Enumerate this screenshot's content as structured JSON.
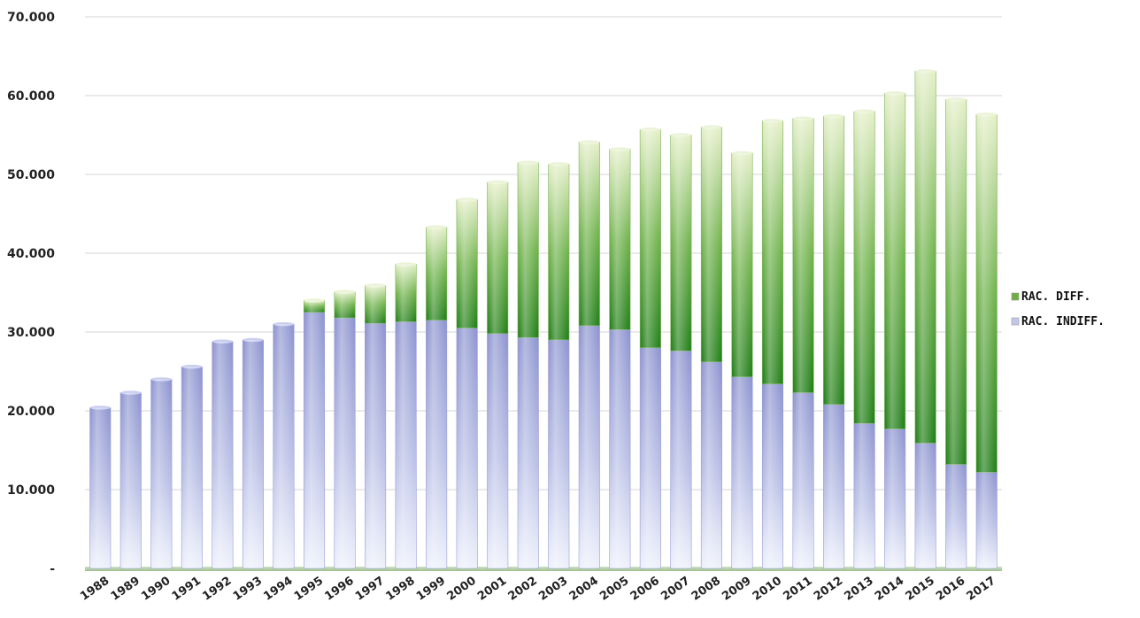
{
  "chart_data": {
    "type": "bar",
    "stacked": true,
    "title": "",
    "xlabel": "",
    "ylabel": "",
    "ylim": [
      0,
      70000
    ],
    "y_ticks": [
      {
        "value": 0,
        "label": "-"
      },
      {
        "value": 10000,
        "label": "10.000"
      },
      {
        "value": 20000,
        "label": "20.000"
      },
      {
        "value": 30000,
        "label": "30.000"
      },
      {
        "value": 40000,
        "label": "40.000"
      },
      {
        "value": 50000,
        "label": "50.000"
      },
      {
        "value": 60000,
        "label": "60.000"
      },
      {
        "value": 70000,
        "label": "70.000"
      }
    ],
    "grid": true,
    "legend_position": "right",
    "categories": [
      "1988",
      "1989",
      "1990",
      "1991",
      "1992",
      "1993",
      "1994",
      "1995",
      "1996",
      "1997",
      "1998",
      "1999",
      "2000",
      "2001",
      "2002",
      "2003",
      "2004",
      "2005",
      "2006",
      "2007",
      "2008",
      "2009",
      "2010",
      "2011",
      "2012",
      "2013",
      "2014",
      "2015",
      "2016",
      "2017"
    ],
    "series": [
      {
        "name": "RAC. INDIFF.",
        "color": "#8f96d0",
        "values": [
          20400,
          22300,
          24000,
          25600,
          28800,
          29000,
          31000,
          32500,
          31800,
          31100,
          31300,
          31500,
          30500,
          29800,
          29300,
          29000,
          30800,
          30300,
          28000,
          27600,
          26200,
          24300,
          23400,
          22300,
          20800,
          18400,
          17700,
          15900,
          13200,
          12200
        ]
      },
      {
        "name": "RAC. DIFF.",
        "color": "#2f8f1f",
        "values": [
          0,
          0,
          0,
          0,
          0,
          0,
          0,
          1500,
          3300,
          4800,
          7300,
          11800,
          16300,
          19200,
          22200,
          22300,
          23300,
          22900,
          27700,
          27400,
          29800,
          28400,
          33400,
          34800,
          36600,
          39600,
          42600,
          47200,
          46300,
          45400
        ]
      }
    ]
  }
}
